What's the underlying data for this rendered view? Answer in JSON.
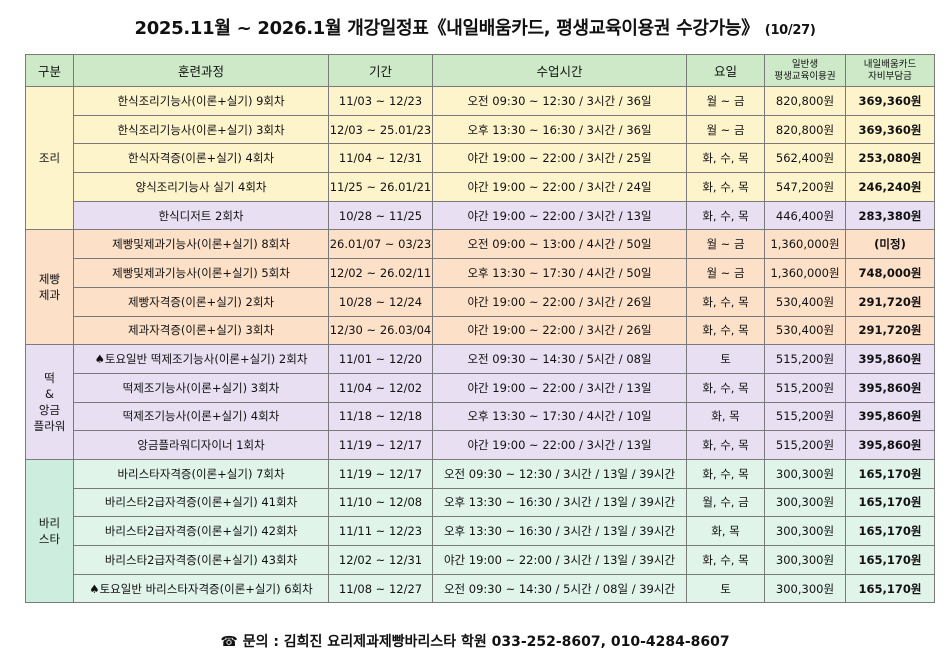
{
  "title": {
    "main": "2025.11월 ~ 2026.1월 개강일정표《내일배움카드, 평생교육이용권 수강가능》",
    "date": "(10/27)"
  },
  "headers": {
    "category": "구분",
    "course": "훈련과정",
    "period": "기간",
    "time": "수업시간",
    "day": "요일",
    "general_line1": "일반생",
    "general_line2": "평생교육이용권",
    "card_line1": "내일배움카드",
    "card_line2": "자비부담금"
  },
  "categories": [
    {
      "lines": [
        "조리"
      ]
    },
    {
      "lines": [
        "제빵",
        "제과"
      ]
    },
    {
      "lines": [
        "떡",
        "&",
        "앙금",
        "플라워"
      ]
    },
    {
      "lines": [
        "바리",
        "스타"
      ]
    }
  ],
  "rows": [
    {
      "course": "한식조리기능사(이론+실기) 9회차",
      "period": "11/03 ~ 12/23",
      "time": "오전 09:30 ~ 12:30 / 3시간 / 36일",
      "day": "월 ~ 금",
      "general": "820,800원",
      "card": "369,360원"
    },
    {
      "course": "한식조리기능사(이론+실기) 3회차",
      "period": "12/03 ~ 25.01/23",
      "time": "오후 13:30 ~ 16:30 / 3시간 / 36일",
      "day": "월 ~ 금",
      "general": "820,800원",
      "card": "369,360원"
    },
    {
      "course": "한식자격증(이론+실기) 4회차",
      "period": "11/04 ~ 12/31",
      "time": "야간 19:00 ~ 22:00 / 3시간 / 25일",
      "day": "화, 수, 목",
      "general": "562,400원",
      "card": "253,080원"
    },
    {
      "course": "양식조리기능사 실기 4회차",
      "period": "11/25 ~ 26.01/21",
      "time": "야간 19:00 ~ 22:00 / 3시간 / 24일",
      "day": "화, 수, 목",
      "general": "547,200원",
      "card": "246,240원"
    },
    {
      "course": "한식디저트 2회차",
      "period": "10/28 ~ 11/25",
      "time": "야간 19:00 ~ 22:00 / 3시간 / 13일",
      "day": "화, 수, 목",
      "general": "446,400원",
      "card": "283,380원"
    },
    {
      "course": "제빵및제과기능사(이론+실기) 8회차",
      "period": "26.01/07 ~ 03/23",
      "time": "오전 09:00 ~ 13:00 / 4시간 / 50일",
      "day": "월 ~ 금",
      "general": "1,360,000원",
      "card": "(미정)"
    },
    {
      "course": "제빵및제과기능사(이론+실기) 5회차",
      "period": "12/02 ~ 26.02/11",
      "time": "오후 13:30 ~ 17:30 / 4시간 / 50일",
      "day": "월 ~ 금",
      "general": "1,360,000원",
      "card": "748,000원"
    },
    {
      "course": "제빵자격증(이론+실기) 2회차",
      "period": "10/28 ~ 12/24",
      "time": "야간 19:00 ~ 22:00 / 3시간 / 26일",
      "day": "화, 수, 목",
      "general": "530,400원",
      "card": "291,720원"
    },
    {
      "course": "제과자격증(이론+실기) 3회차",
      "period": "12/30 ~ 26.03/04",
      "time": "야간 19:00 ~ 22:00 / 3시간 / 26일",
      "day": "화, 수, 목",
      "general": "530,400원",
      "card": "291,720원"
    },
    {
      "course": "♠토요일반 떡제조기능사(이론+실기) 2회차",
      "period": "11/01 ~ 12/20",
      "time": "오전 09:30 ~ 14:30 / 5시간 / 08일",
      "day": "토",
      "general": "515,200원",
      "card": "395,860원"
    },
    {
      "course": "떡제조기능사(이론+실기) 3회차",
      "period": "11/04 ~ 12/02",
      "time": "야간 19:00 ~ 22:00 / 3시간 / 13일",
      "day": "화, 수, 목",
      "general": "515,200원",
      "card": "395,860원"
    },
    {
      "course": "떡제조기능사(이론+실기) 4회차",
      "period": "11/18 ~ 12/18",
      "time": "오후 13:30 ~ 17:30 / 4시간 / 10일",
      "day": "화, 목",
      "general": "515,200원",
      "card": "395,860원"
    },
    {
      "course": "앙금플라워디자이너 1회차",
      "period": "11/19 ~ 12/17",
      "time": "야간 19:00 ~ 22:00 / 3시간 / 13일",
      "day": "화, 수, 목",
      "general": "515,200원",
      "card": "395,860원"
    },
    {
      "course": "바리스타자격증(이론+실기) 7회차",
      "period": "11/19 ~ 12/17",
      "time": "오전 09:30 ~ 12:30 / 3시간 / 13일 / 39시간",
      "day": "화, 수, 목",
      "general": "300,300원",
      "card": "165,170원"
    },
    {
      "course": "바리스타2급자격증(이론+실기) 41회차",
      "period": "11/10 ~ 12/08",
      "time": "오후 13:30 ~ 16:30 / 3시간 / 13일 / 39시간",
      "day": "월, 수, 금",
      "general": "300,300원",
      "card": "165,170원"
    },
    {
      "course": "바리스타2급자격증(이론+실기) 42회차",
      "period": "11/11 ~ 12/23",
      "time": "오후 13:30 ~ 16:30 / 3시간 / 13일 / 39시간",
      "day": "화, 목",
      "general": "300,300원",
      "card": "165,170원"
    },
    {
      "course": "바리스타2급자격증(이론+실기) 43회차",
      "period": "12/02 ~ 12/31",
      "time": "야간 19:00 ~ 22:00 / 3시간 / 13일 / 39시간",
      "day": "화, 수, 목",
      "general": "300,300원",
      "card": "165,170원"
    },
    {
      "course": "♠토요일반 바리스타자격증(이론+실기) 6회차",
      "period": "11/08 ~ 12/27",
      "time": "오전 09:30 ~ 14:30 / 5시간 / 08일 / 39시간",
      "day": "토",
      "general": "300,300원",
      "card": "165,170원"
    }
  ],
  "footer": "☎ 문의 : 김희진 요리제과제빵바리스타 학원 033-252-8607, 010-4284-8607"
}
